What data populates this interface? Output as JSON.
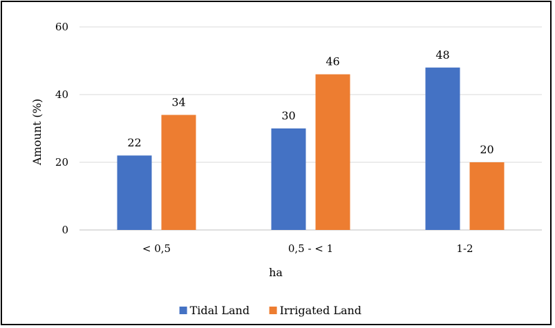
{
  "chart_data": {
    "type": "bar",
    "title": "",
    "xlabel": "ha",
    "ylabel": "Amount (%)",
    "ylim": [
      0,
      60
    ],
    "yticks": [
      0,
      20,
      40,
      60
    ],
    "grid": true,
    "legend_position": "bottom",
    "categories": [
      "< 0,5",
      "0,5 - < 1",
      "1-2"
    ],
    "series": [
      {
        "name": "Tidal Land",
        "values": [
          22,
          30,
          48
        ],
        "color": "#4472c4"
      },
      {
        "name": "Irrigated Land",
        "values": [
          34,
          46,
          20
        ],
        "color": "#ed7d31"
      }
    ]
  }
}
